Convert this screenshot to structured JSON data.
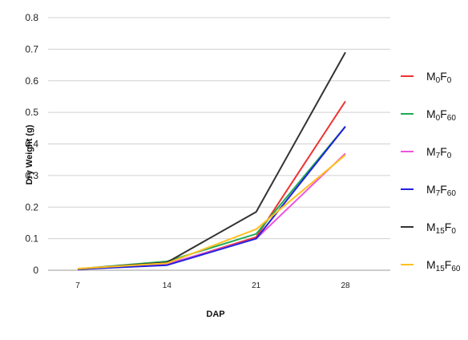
{
  "chart_data": {
    "type": "line",
    "xlabel": "DAP",
    "ylabel": "Dry Weight  (g)",
    "x": [
      7,
      14,
      21,
      28
    ],
    "xlim": [
      7,
      28
    ],
    "ylim": [
      0,
      0.8
    ],
    "yticks": [
      "0",
      "0.1",
      "0.2",
      "0.3",
      "0.4",
      "0.5",
      "0.6",
      "0.7",
      "0.8"
    ],
    "xticks": [
      "7",
      "14",
      "21",
      "28"
    ],
    "grid": "horizontal",
    "legend_position": "right",
    "series": [
      {
        "name": "M0F0",
        "label_main": "M",
        "label_sub1": "0",
        "label_mid": "F",
        "label_sub2": "0",
        "color": "#ee3333",
        "values": [
          0.003,
          0.018,
          0.105,
          0.535
        ]
      },
      {
        "name": "M0F60",
        "label_main": "M",
        "label_sub1": "0",
        "label_mid": "F",
        "label_sub2": "60",
        "color": "#22aa55",
        "values": [
          0.004,
          0.028,
          0.115,
          0.455
        ]
      },
      {
        "name": "M7F0",
        "label_main": "M",
        "label_sub1": "7",
        "label_mid": "F",
        "label_sub2": "0",
        "color": "#ee55dd",
        "values": [
          0.003,
          0.02,
          0.1,
          0.37
        ]
      },
      {
        "name": "M7F60",
        "label_main": "M",
        "label_sub1": "7",
        "label_mid": "F",
        "label_sub2": "60",
        "color": "#2222dd",
        "values": [
          0.003,
          0.016,
          0.1,
          0.455
        ]
      },
      {
        "name": "M15F0",
        "label_main": "M",
        "label_sub1": "15",
        "label_mid": "F",
        "label_sub2": "0",
        "color": "#333333",
        "values": [
          0.004,
          0.025,
          0.185,
          0.69
        ]
      },
      {
        "name": "M15F60",
        "label_main": "M",
        "label_sub1": "15",
        "label_mid": "F",
        "label_sub2": "60",
        "color": "#ffc020",
        "values": [
          0.005,
          0.022,
          0.13,
          0.365
        ]
      }
    ]
  }
}
